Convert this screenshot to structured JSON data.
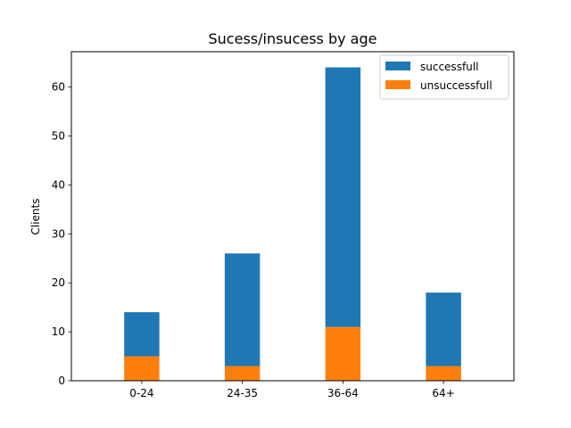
{
  "chart_data": {
    "type": "bar",
    "stacked": true,
    "title": "Sucess/insucess by age",
    "xlabel": "",
    "ylabel": "Clients",
    "categories": [
      "0-24",
      "24-35",
      "36-64",
      "64+"
    ],
    "series": [
      {
        "name": "unsuccessfull",
        "values": [
          5,
          3,
          11,
          3
        ],
        "color": "#ff7f0e"
      },
      {
        "name": "successfull",
        "values": [
          9,
          23,
          53,
          15
        ],
        "color": "#1f77b4"
      }
    ],
    "legend_order": [
      "successfull",
      "unsuccessfull"
    ],
    "ylim": [
      0,
      67.2
    ],
    "yticks": [
      0,
      10,
      20,
      30,
      40,
      50,
      60
    ],
    "legend_position": "top-right",
    "grid": false
  }
}
